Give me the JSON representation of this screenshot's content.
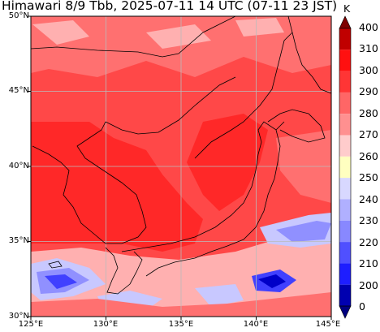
{
  "title": "Himawari 8/9 Tbb, 2025-07-11 14 UTC (07-11 23 JST)",
  "lat_labels": [
    "50°N",
    "45°N",
    "40°N",
    "35°N",
    "30°N"
  ],
  "lon_labels": [
    "125°E",
    "130°E",
    "135°E",
    "140°E",
    "145°E"
  ],
  "colorbar": {
    "unit": "K",
    "labels": [
      "400",
      "310",
      "300",
      "290",
      "280",
      "270",
      "260",
      "250",
      "240",
      "230",
      "220",
      "210",
      "200",
      "0"
    ],
    "colors_top_to_bottom": [
      "#7f0000",
      "#c00000",
      "#ff1010",
      "#ff3535",
      "#ff6666",
      "#ff9090",
      "#ffcccc",
      "#ffffc0",
      "#d8d8ff",
      "#b0b0ff",
      "#8888ff",
      "#5050ff",
      "#1e1eff",
      "#0000b0",
      "#000080"
    ]
  },
  "map_colors": {
    "base": "#ff4848",
    "warm": "#ff2828",
    "mid": "#ff7070",
    "pale": "#ffb0b0",
    "cold1": "#c8c8ff",
    "cold2": "#9090ff",
    "cold3": "#4040ff",
    "cold4": "#0000c8",
    "coast": "#000000",
    "grid": "#bbbbbb"
  }
}
